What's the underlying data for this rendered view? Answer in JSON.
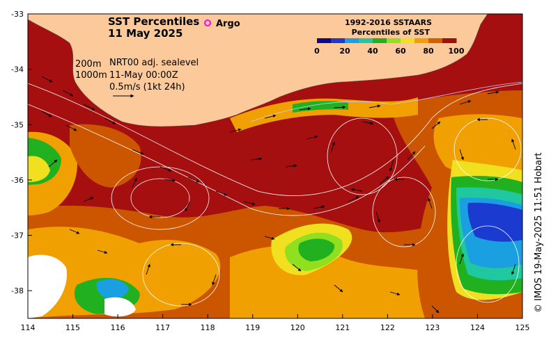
{
  "title": {
    "line1": "SST Percentiles",
    "line2": "11 May 2025"
  },
  "argo_label": "Argo",
  "legend": {
    "title1": "1992-2016 SSTAARS",
    "title2": "Percentiles of SST",
    "ticks": [
      "0",
      "20",
      "40",
      "60",
      "80",
      "100"
    ],
    "colors": [
      "#0a0a8a",
      "#1a3ad0",
      "#1aa0e0",
      "#20c8a0",
      "#20b020",
      "#90e020",
      "#f0e020",
      "#f0a000",
      "#d06000",
      "#a01010"
    ]
  },
  "info": {
    "depth1": "200m",
    "depth2": "1000m",
    "product": "NRT00 adj. sealevel",
    "time": "11-May 00:00Z",
    "scale": "0.5m/s (1kt 24h)"
  },
  "credit": "© IMOS 19-May-2025 11:51 Hobart",
  "chart_data": {
    "type": "heatmap",
    "x_ticks": [
      "114",
      "115",
      "116",
      "117",
      "118",
      "119",
      "120",
      "121",
      "122",
      "123",
      "124",
      "125"
    ],
    "y_ticks": [
      "-33",
      "-34",
      "-35",
      "-36",
      "-37",
      "-38"
    ],
    "xlim": [
      114,
      125
    ],
    "ylim": [
      -38.5,
      -33
    ],
    "colors": {
      "land": "#fbc99a",
      "p100": "#a50f0f",
      "p90": "#cc5500",
      "p80": "#f0a000",
      "p70": "#f0e020",
      "p60": "#90e020",
      "p50": "#20b020",
      "p40": "#20c8a0",
      "p20": "#1aa0e0",
      "p10": "#1a3ad0",
      "missing": "#ffffff"
    }
  }
}
